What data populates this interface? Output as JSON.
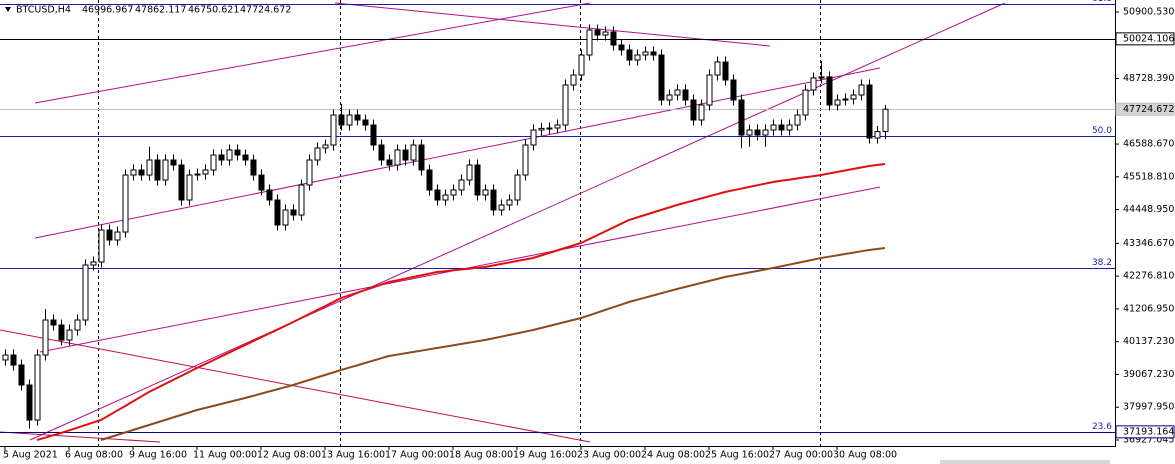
{
  "chart_data": {
    "type": "candlestick",
    "symbol": "BTCUSD,H4",
    "categories": [
      "5 Aug 2021",
      null,
      null,
      null,
      null,
      null,
      null,
      null,
      "6 Aug 08:00",
      null,
      null,
      null,
      null,
      null,
      null,
      null,
      "9 Aug 16:00",
      null,
      null,
      null,
      null,
      null,
      null,
      null,
      "11 Aug 00:00",
      null,
      null,
      null,
      null,
      null,
      null,
      null,
      "12 Aug 08:00",
      null,
      null,
      null,
      null,
      null,
      null,
      null,
      "13 Aug 16:00",
      null,
      null,
      null,
      null,
      null,
      null,
      null,
      "17 Aug 00:00",
      null,
      null,
      null,
      null,
      null,
      null,
      null,
      "18 Aug 08:00",
      null,
      null,
      null,
      null,
      null,
      null,
      null,
      "19 Aug 16:00",
      null,
      null,
      null,
      null,
      null,
      null,
      null,
      "23 Aug 00:00",
      null,
      null,
      null,
      null,
      null,
      null,
      null,
      "24 Aug 08:00",
      null,
      null,
      null,
      null,
      null,
      null,
      null,
      "25 Aug 16:00",
      null,
      null,
      null,
      null,
      null,
      null,
      null,
      "27 Aug 00:00",
      null,
      null,
      null,
      null,
      null,
      null,
      null,
      "30 Aug 08:00",
      null,
      null,
      null,
      null,
      null,
      null
    ],
    "candles": [
      [
        39540,
        39881,
        39360,
        39701
      ],
      [
        39701,
        39881,
        39195,
        39375
      ],
      [
        39375,
        39555,
        38542,
        38722
      ],
      [
        38722,
        38902,
        37300,
        37579
      ],
      [
        37579,
        39881,
        37399,
        39701
      ],
      [
        39701,
        41200,
        39521,
        40844
      ],
      [
        40844,
        41024,
        40501,
        40681
      ],
      [
        40681,
        40861,
        40011,
        40191
      ],
      [
        40191,
        40697,
        40011,
        40517
      ],
      [
        40517,
        41024,
        40337,
        40844
      ],
      [
        40844,
        42820,
        40664,
        42640
      ],
      [
        42640,
        42918,
        42460,
        42738
      ],
      [
        42738,
        43963,
        42558,
        43783
      ],
      [
        43783,
        43963,
        43276,
        43456
      ],
      [
        43456,
        43897,
        43276,
        43717
      ],
      [
        43717,
        45758,
        43537,
        45578
      ],
      [
        45578,
        45922,
        45398,
        45742
      ],
      [
        45742,
        45922,
        45398,
        45578
      ],
      [
        45578,
        46500,
        45398,
        46068
      ],
      [
        46068,
        46248,
        45235,
        45415
      ],
      [
        45415,
        46248,
        45235,
        46068
      ],
      [
        46068,
        46248,
        45725,
        45905
      ],
      [
        45905,
        46085,
        44582,
        44762
      ],
      [
        44762,
        45758,
        44582,
        45578
      ],
      [
        45578,
        45790,
        45398,
        45610
      ],
      [
        45610,
        45922,
        45430,
        45742
      ],
      [
        45742,
        46411,
        45562,
        46231
      ],
      [
        46231,
        46411,
        45888,
        46068
      ],
      [
        46068,
        46575,
        45888,
        46395
      ],
      [
        46395,
        46575,
        46051,
        46231
      ],
      [
        46231,
        46411,
        45888,
        46068
      ],
      [
        46068,
        46248,
        45398,
        45578
      ],
      [
        45578,
        45758,
        44909,
        45089
      ],
      [
        45089,
        45269,
        44582,
        44762
      ],
      [
        44762,
        44942,
        43766,
        43946
      ],
      [
        43946,
        44616,
        43766,
        44436
      ],
      [
        44436,
        44616,
        44092,
        44272
      ],
      [
        44272,
        45432,
        44092,
        45252
      ],
      [
        45252,
        46248,
        45072,
        46068
      ],
      [
        46068,
        46640,
        45888,
        46460
      ],
      [
        46460,
        46738,
        46280,
        46558
      ],
      [
        46558,
        47717,
        46378,
        47537
      ],
      [
        47537,
        47900,
        47031,
        47211
      ],
      [
        47211,
        47717,
        47031,
        47537
      ],
      [
        47537,
        47717,
        47194,
        47374
      ],
      [
        47374,
        47554,
        47031,
        47211
      ],
      [
        47211,
        47391,
        46378,
        46558
      ],
      [
        46558,
        46738,
        45888,
        46068
      ],
      [
        46068,
        46248,
        45725,
        45905
      ],
      [
        45905,
        46575,
        45725,
        46395
      ],
      [
        46395,
        46575,
        45888,
        46068
      ],
      [
        46068,
        46738,
        45888,
        46558
      ],
      [
        46558,
        46738,
        45562,
        45742
      ],
      [
        45742,
        45922,
        44909,
        45089
      ],
      [
        45089,
        45269,
        44582,
        44762
      ],
      [
        44762,
        45105,
        44582,
        44925
      ],
      [
        44925,
        45269,
        44745,
        45089
      ],
      [
        45089,
        45595,
        44909,
        45415
      ],
      [
        45415,
        46085,
        45235,
        45905
      ],
      [
        45905,
        46085,
        44745,
        44925
      ],
      [
        44925,
        45269,
        44745,
        45089
      ],
      [
        45089,
        45269,
        44256,
        44436
      ],
      [
        44436,
        44779,
        44256,
        44599
      ],
      [
        44599,
        44942,
        44419,
        44762
      ],
      [
        44762,
        45758,
        44582,
        45578
      ],
      [
        45578,
        46738,
        45398,
        46558
      ],
      [
        46558,
        47227,
        46378,
        47047
      ],
      [
        47047,
        47280,
        46867,
        47100
      ],
      [
        47100,
        47293,
        46920,
        47113
      ],
      [
        47113,
        47391,
        46933,
        47211
      ],
      [
        47211,
        48697,
        47031,
        48517
      ],
      [
        48517,
        49023,
        48337,
        48843
      ],
      [
        48843,
        49676,
        48663,
        49496
      ],
      [
        49496,
        50492,
        49316,
        50312
      ],
      [
        50312,
        50492,
        49969,
        50149
      ],
      [
        50149,
        50427,
        49969,
        50247
      ],
      [
        50247,
        50427,
        49643,
        49823
      ],
      [
        49823,
        50003,
        49480,
        49660
      ],
      [
        49660,
        49840,
        49153,
        49333
      ],
      [
        49333,
        49676,
        49153,
        49496
      ],
      [
        49496,
        49774,
        49316,
        49594
      ],
      [
        49594,
        49774,
        49316,
        49496
      ],
      [
        49496,
        49676,
        47847,
        48027
      ],
      [
        48027,
        48370,
        47847,
        48190
      ],
      [
        48190,
        48534,
        48010,
        48354
      ],
      [
        48354,
        48534,
        47847,
        48027
      ],
      [
        48027,
        48207,
        47194,
        47374
      ],
      [
        47374,
        48044,
        47194,
        47864
      ],
      [
        47864,
        49023,
        47684,
        48843
      ],
      [
        48843,
        49448,
        48663,
        49268
      ],
      [
        49268,
        49448,
        48500,
        48680
      ],
      [
        48680,
        48860,
        47847,
        48027
      ],
      [
        48027,
        48207,
        46450,
        46884
      ],
      [
        46884,
        47227,
        46500,
        47047
      ],
      [
        47047,
        47227,
        46704,
        46884
      ],
      [
        46884,
        47227,
        46500,
        47047
      ],
      [
        47047,
        47391,
        46867,
        47211
      ],
      [
        47211,
        47391,
        46867,
        47047
      ],
      [
        47047,
        47391,
        46867,
        47211
      ],
      [
        47211,
        47717,
        47031,
        47537
      ],
      [
        47537,
        48534,
        47357,
        48354
      ],
      [
        48354,
        48926,
        48174,
        48746
      ],
      [
        48746,
        49300,
        48566,
        48780
      ],
      [
        48780,
        48960,
        47684,
        47864
      ],
      [
        47864,
        48207,
        47684,
        48027
      ],
      [
        48027,
        48240,
        47847,
        48060
      ],
      [
        48060,
        48370,
        47880,
        48190
      ],
      [
        48190,
        48697,
        48010,
        48517
      ],
      [
        48517,
        48697,
        46606,
        46786
      ],
      [
        46786,
        47177,
        46606,
        46997
      ],
      [
        46996.967,
        47862.117,
        46750.621,
        47724.672
      ]
    ],
    "bull_color": "#ffffff",
    "bear_color": "#000000",
    "ylim": [
      36731,
      51292
    ],
    "yticks": [
      {
        "value": 50900.53,
        "label": "50900.530"
      },
      {
        "value": 48728.39,
        "label": "48728.390"
      },
      {
        "value": 46588.67,
        "label": "46588.670"
      },
      {
        "value": 45518.81,
        "label": "45518.810"
      },
      {
        "value": 44448.95,
        "label": "44448.950"
      },
      {
        "value": 43346.67,
        "label": "43346.670"
      },
      {
        "value": 42276.81,
        "label": "42276.810"
      },
      {
        "value": 41206.95,
        "label": "41206.950"
      },
      {
        "value": 40137.23,
        "label": "40137.230"
      },
      {
        "value": 39067.23,
        "label": "39067.230"
      },
      {
        "value": 37997.95,
        "label": "37997.950"
      },
      36927.045
    ],
    "moving_averages": [
      {
        "color": "#e01010",
        "values": [
          null,
          null,
          null,
          null,
          36926,
          37002,
          37079,
          37155,
          37240,
          37325,
          37410,
          37495,
          37579,
          37731,
          37883,
          38035,
          38188,
          38340,
          38493,
          38624,
          38754,
          38885,
          39016,
          39146,
          39277,
          39402,
          39527,
          39652,
          39776,
          39901,
          40026,
          40151,
          40276,
          40401,
          40525,
          40650,
          40775,
          40906,
          41036,
          41167,
          41298,
          41428,
          41559,
          41647,
          41734,
          41822,
          41910,
          41997,
          42085,
          42139,
          42194,
          42248,
          42302,
          42357,
          42411,
          42438,
          42466,
          42493,
          42520,
          42548,
          42575,
          42624,
          42673,
          42722,
          42770,
          42819,
          42868,
          42950,
          43031,
          43113,
          43195,
          43276,
          43358,
          43483,
          43608,
          43733,
          43859,
          43984,
          44109,
          44191,
          44272,
          44354,
          44436,
          44517,
          44599,
          44670,
          44740,
          44811,
          44882,
          44952,
          45023,
          45078,
          45132,
          45187,
          45241,
          45296,
          45350,
          45388,
          45426,
          45464,
          45502,
          45540,
          45578,
          45627,
          45676,
          45725,
          45774,
          45823,
          45872,
          45905,
          45937
        ]
      },
      {
        "color": "#8b4a1c",
        "values": [
          null,
          null,
          null,
          null,
          null,
          null,
          null,
          null,
          null,
          null,
          null,
          null,
          36926,
          37008,
          37090,
          37171,
          37253,
          37335,
          37416,
          37498,
          37580,
          37661,
          37743,
          37825,
          37906,
          37971,
          38036,
          38102,
          38167,
          38232,
          38297,
          38368,
          38439,
          38510,
          38580,
          38651,
          38722,
          38804,
          38886,
          38967,
          39049,
          39131,
          39212,
          39288,
          39364,
          39441,
          39517,
          39593,
          39669,
          39713,
          39756,
          39800,
          39843,
          39887,
          39930,
          39974,
          40017,
          40061,
          40104,
          40148,
          40191,
          40245,
          40300,
          40354,
          40408,
          40463,
          40517,
          40582,
          40648,
          40713,
          40778,
          40844,
          40909,
          40996,
          41083,
          41170,
          41258,
          41345,
          41432,
          41503,
          41573,
          41644,
          41715,
          41785,
          41856,
          41921,
          41987,
          42052,
          42117,
          42183,
          42248,
          42297,
          42346,
          42395,
          42444,
          42493,
          42542,
          42596,
          42651,
          42705,
          42759,
          42814,
          42868,
          42912,
          42955,
          42999,
          43042,
          43086,
          43129,
          43162,
          43195
        ]
      }
    ],
    "levels": [
      {
        "value": 50024.106,
        "color": "#000000"
      },
      {
        "value": 47724.672,
        "color": "#c0c0c0"
      },
      {
        "value": 37193.164,
        "color": "#000080"
      }
    ],
    "fib": {
      "color": "#1c1ca8",
      "levels": [
        {
          "label": "61.8",
          "value": 51163
        },
        {
          "label": "50.0",
          "value": 46850
        },
        {
          "label": "38.2",
          "value": 42537
        },
        {
          "label": "23.6",
          "value": 37200
        }
      ]
    }
  }
}
